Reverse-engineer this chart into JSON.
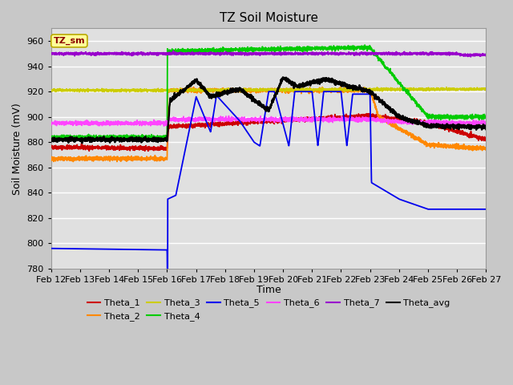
{
  "title": "TZ Soil Moisture",
  "xlabel": "Time",
  "ylabel": "Soil Moisture (mV)",
  "ylim": [
    780,
    970
  ],
  "fig_color": "#c8c8c8",
  "plot_bg_color": "#e0e0e0",
  "grid_color": "#ffffff",
  "legend_label": "TZ_sm",
  "series_colors": {
    "Theta_1": "#cc0000",
    "Theta_2": "#ff8800",
    "Theta_3": "#cccc00",
    "Theta_4": "#00cc00",
    "Theta_5": "#0000ee",
    "Theta_6": "#ff44ff",
    "Theta_7": "#9900cc",
    "Theta_avg": "#000000"
  },
  "date_labels": [
    "Feb 12",
    "Feb 13",
    "Feb 14",
    "Feb 15",
    "Feb 16",
    "Feb 17",
    "Feb 18",
    "Feb 19",
    "Feb 20",
    "Feb 21",
    "Feb 22",
    "Feb 23",
    "Feb 24",
    "Feb 25",
    "Feb 26",
    "Feb 27"
  ],
  "yticks": [
    780,
    800,
    820,
    840,
    860,
    880,
    900,
    920,
    940,
    960
  ]
}
